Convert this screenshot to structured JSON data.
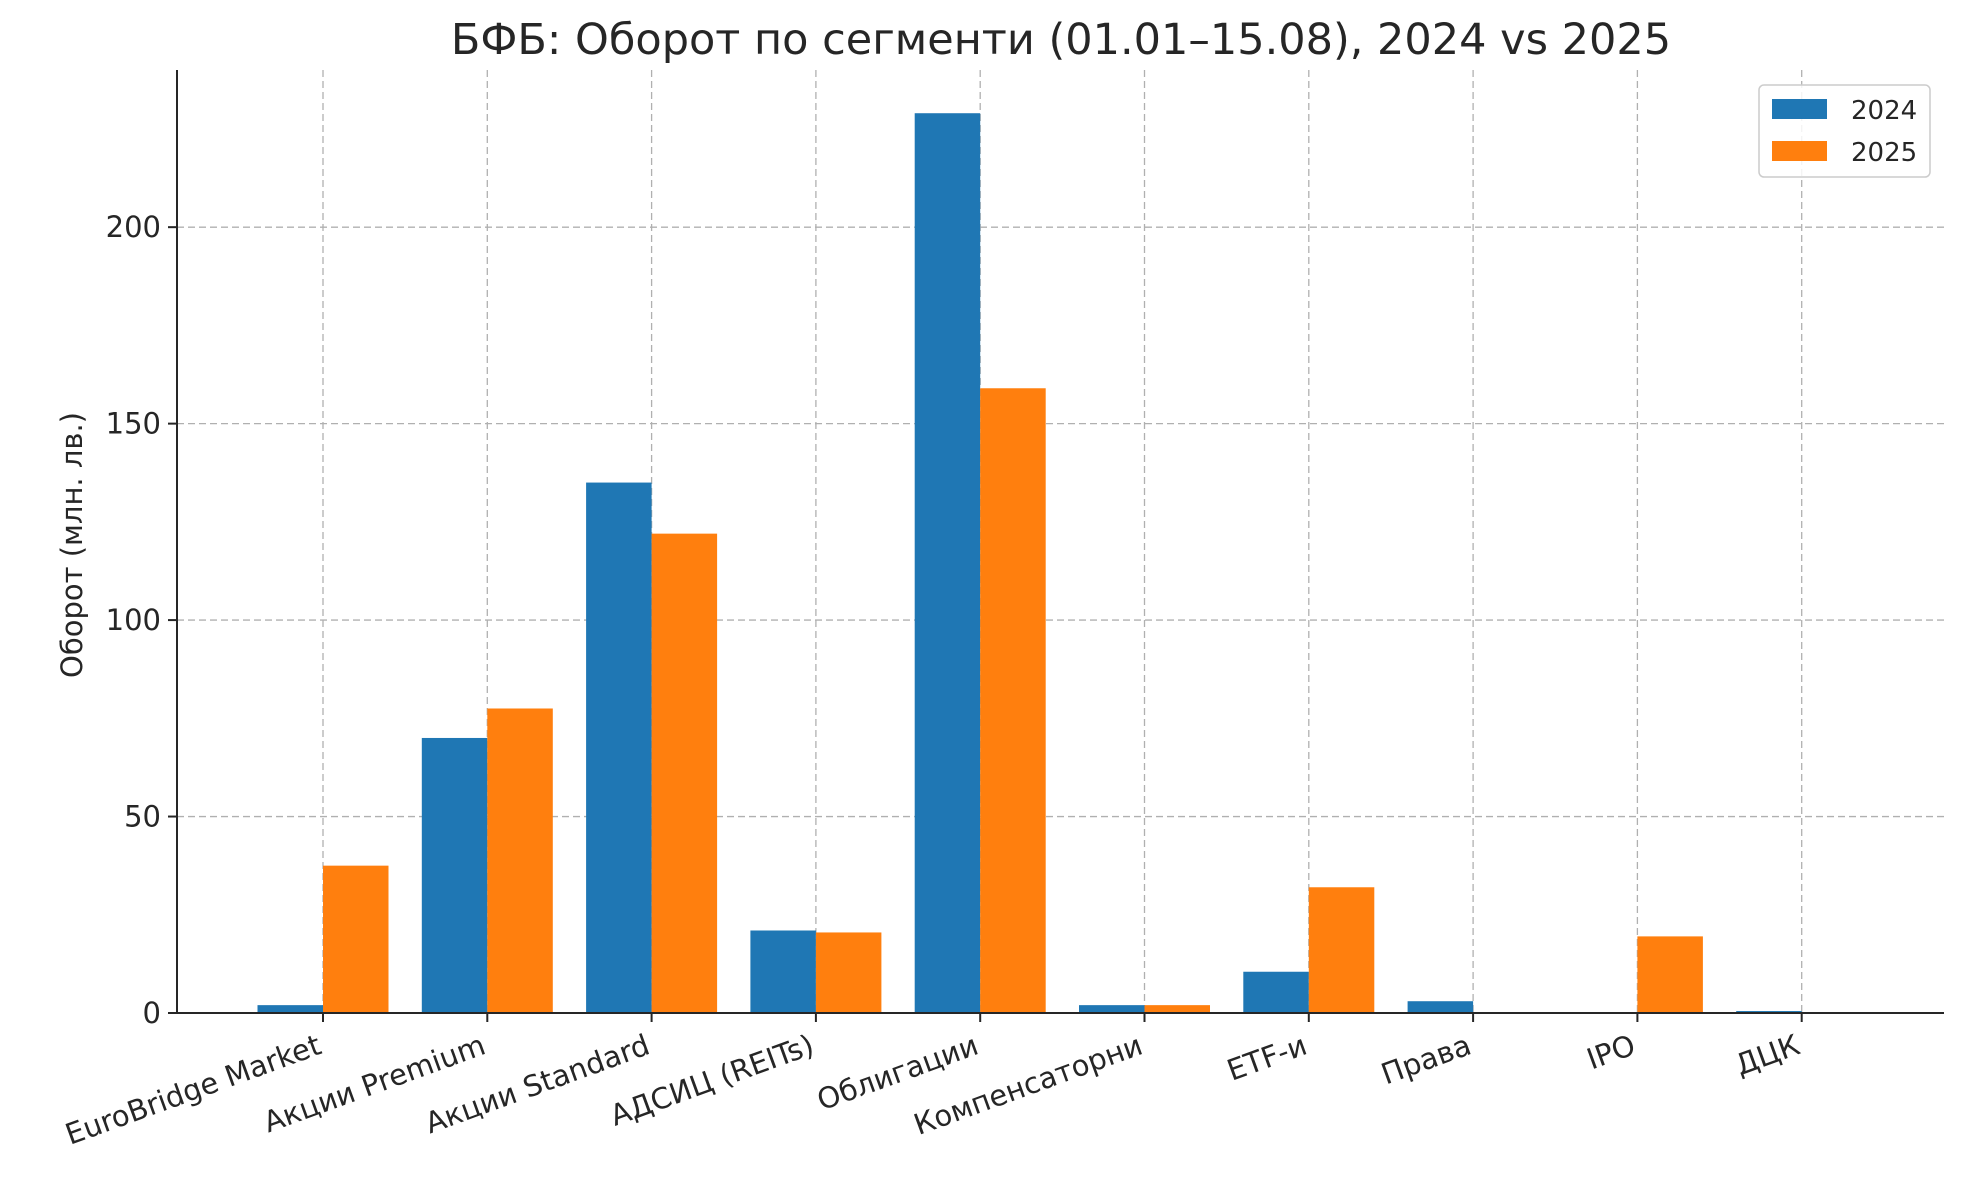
{
  "chart_data": {
    "type": "bar",
    "title": "БФБ: Оборот по сегменти (01.01–15.08), 2024 vs 2025",
    "xlabel": "",
    "ylabel": "Оборот (млн. лв.)",
    "ylim": [
      0,
      240
    ],
    "yticks": [
      0,
      50,
      100,
      150,
      200
    ],
    "grid": true,
    "legend_position": "top-right",
    "categories": [
      "EuroBridge Market",
      "Акции Premium",
      "Акции Standard",
      "АДСИЦ (REITs)",
      "Облигации",
      "Компенсаторни",
      "ETF-и",
      "Права",
      "IPO",
      "ДЦК"
    ],
    "series": [
      {
        "name": "2024",
        "color": "#1f77b4",
        "values": [
          2.0,
          70.0,
          135.0,
          21.0,
          229.0,
          2.0,
          10.5,
          3.0,
          0.0,
          0.5
        ]
      },
      {
        "name": "2025",
        "color": "#ff7f0e",
        "values": [
          37.5,
          77.5,
          122.0,
          20.5,
          159.0,
          2.0,
          32.0,
          0.0,
          19.5,
          0.0
        ]
      }
    ]
  }
}
